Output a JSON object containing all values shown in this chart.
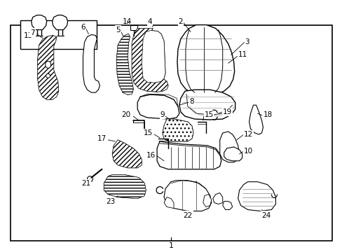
{
  "bg_color": "#ffffff",
  "border_color": "#000000",
  "line_color": "#000000",
  "fig_width": 4.89,
  "fig_height": 3.6,
  "dpi": 100
}
